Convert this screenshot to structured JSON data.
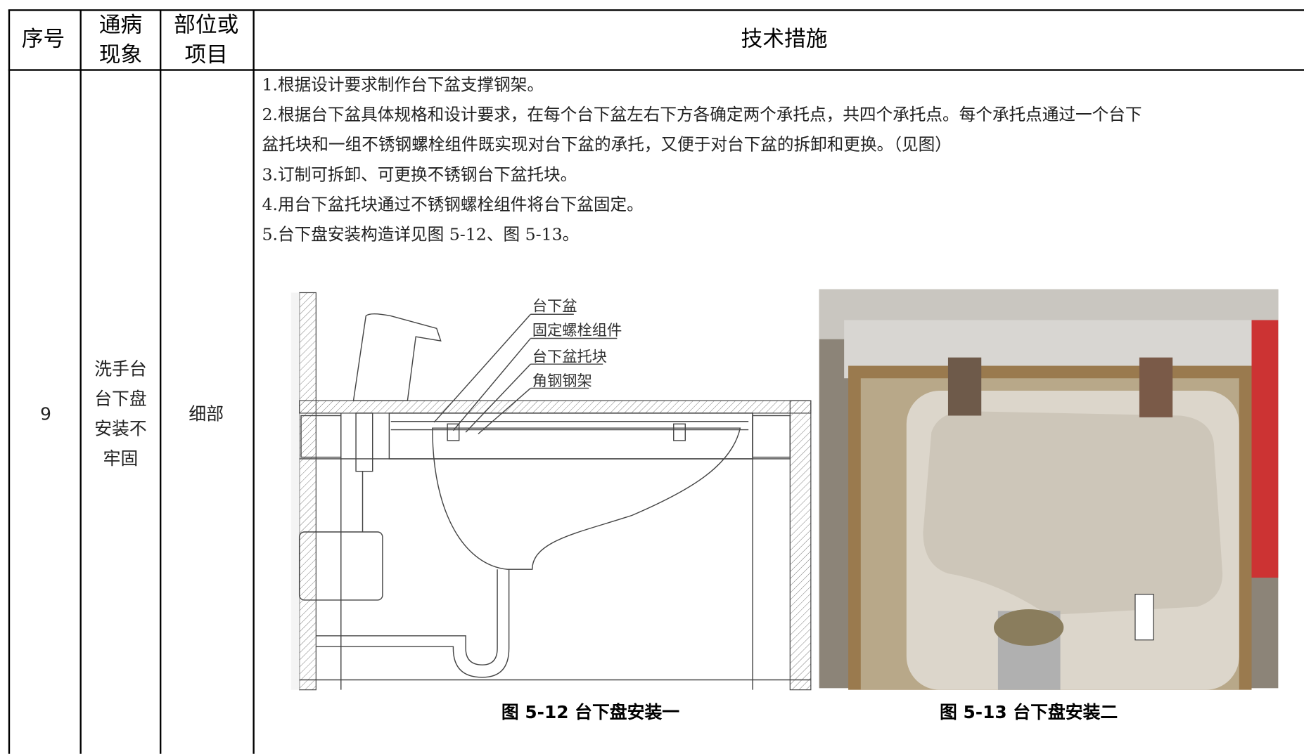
{
  "table": {
    "header": {
      "no": "序号",
      "defect": [
        "通病",
        "现象"
      ],
      "item": [
        "部位或",
        "项目"
      ],
      "measures": "技术措施"
    },
    "rows": [
      {
        "no": "9",
        "defect": [
          "洗手台",
          "台下盘",
          "安装不",
          "牢固"
        ],
        "item": "细部",
        "measures": [
          "1.根据设计要求制作台下盆支撑钢架。",
          "2.根据台下盆具体规格和设计要求，在每个台下盆左右下方各确定两个承托点，共四个承托点。每个承托点通过一个台下",
          "盆托块和一组不锈钢螺栓组件既实现对台下盆的承托，又便于对台下盆的拆卸和更换。（见图）",
          "3.订制可拆卸、可更换不锈钢台下盆托块。",
          "4.用台下盆托块通过不锈钢螺栓组件将台下盆固定。",
          "5.台下盘安装构造详见图 5-12、图 5-13。"
        ],
        "figures": [
          {
            "caption": "图 5-12  台下盘安装一",
            "labels": [
              "台下盆",
              "固定螺栓组件",
              "台下盆托块",
              "角钢钢架"
            ]
          },
          {
            "caption": "图 5-13  台下盘安装二"
          }
        ]
      }
    ]
  }
}
